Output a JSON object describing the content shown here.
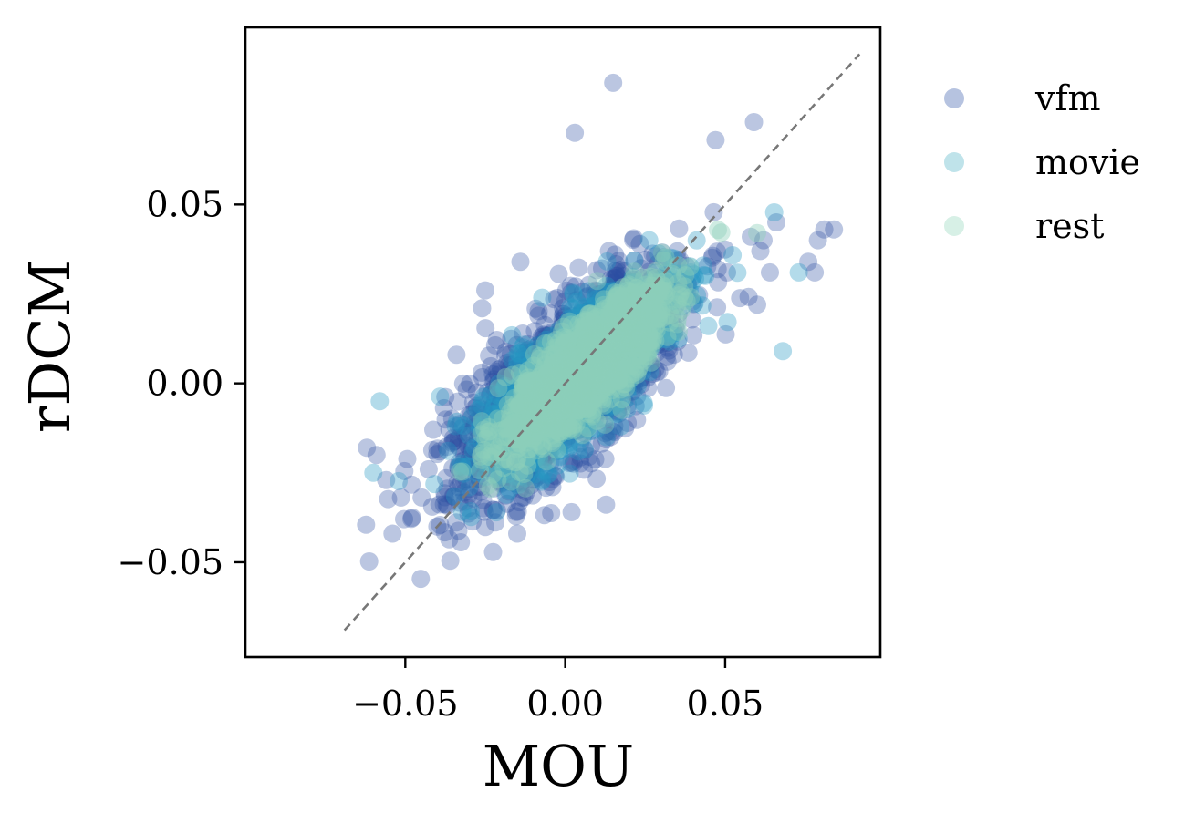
{
  "chart_data": {
    "type": "scatter",
    "title": "",
    "xlabel": "MOU",
    "ylabel": "rDCM",
    "xlim": [
      -0.1,
      0.0985
    ],
    "ylim": [
      -0.0765,
      0.0995
    ],
    "xticks": [
      -0.05,
      0.0,
      0.05
    ],
    "xtick_labels": [
      "−0.05",
      "0.00",
      "0.05"
    ],
    "yticks": [
      -0.05,
      0.0,
      0.05
    ],
    "ytick_labels": [
      "−0.05",
      "0.00",
      "0.05"
    ],
    "grid": false,
    "legend_position": "outside-right-top",
    "reference_line": {
      "style": "dashed",
      "color": "#777777",
      "from": [
        -0.069,
        -0.069
      ],
      "to": [
        0.092,
        0.092
      ]
    },
    "series": [
      {
        "name": "vfm",
        "color": "#2b4ea2",
        "legend_color": "#b6c3e0",
        "opacity": 0.32,
        "cloud": {
          "center": [
            0.0,
            0.0
          ],
          "slope": 0.84,
          "spread_along": 0.021,
          "spread_across": 0.0085,
          "count": 1800
        },
        "points": [
          [
            0.015,
            0.084
          ],
          [
            0.003,
            0.07
          ],
          [
            0.059,
            0.073
          ],
          [
            0.047,
            0.068
          ],
          [
            0.066,
            0.045
          ],
          [
            0.084,
            0.043
          ],
          [
            0.081,
            0.043
          ],
          [
            0.079,
            0.04
          ],
          [
            0.062,
            0.04
          ],
          [
            0.061,
            0.037
          ],
          [
            0.058,
            0.041
          ],
          [
            0.076,
            0.034
          ],
          [
            0.078,
            0.031
          ],
          [
            0.064,
            0.031
          ],
          [
            0.06,
            0.022
          ],
          [
            -0.014,
            0.034
          ],
          [
            -0.025,
            0.026
          ],
          [
            -0.026,
            0.021
          ],
          [
            -0.034,
            0.008
          ],
          [
            -0.062,
            -0.018
          ],
          [
            -0.059,
            -0.02
          ],
          [
            -0.056,
            -0.027
          ],
          [
            -0.054,
            -0.042
          ],
          [
            -0.015,
            -0.042
          ],
          [
            -0.04,
            -0.04
          ]
        ]
      },
      {
        "name": "movie",
        "color": "#2497c4",
        "legend_color": "#bfe3ea",
        "opacity": 0.35,
        "cloud": {
          "center": [
            0.003,
            0.002
          ],
          "slope": 0.86,
          "spread_along": 0.018,
          "spread_across": 0.0065,
          "count": 1500
        },
        "points": [
          [
            -0.058,
            -0.005
          ],
          [
            -0.06,
            -0.025
          ],
          [
            0.073,
            0.031
          ],
          [
            0.068,
            0.009
          ]
        ]
      },
      {
        "name": "rest",
        "color": "#8dd0b9",
        "legend_color": "#d7f0e6",
        "opacity": 0.42,
        "cloud": {
          "center": [
            0.006,
            0.004
          ],
          "slope": 0.88,
          "spread_along": 0.016,
          "spread_across": 0.0048,
          "count": 1600
        },
        "points": [
          [
            0.06,
            0.042
          ]
        ]
      }
    ]
  }
}
